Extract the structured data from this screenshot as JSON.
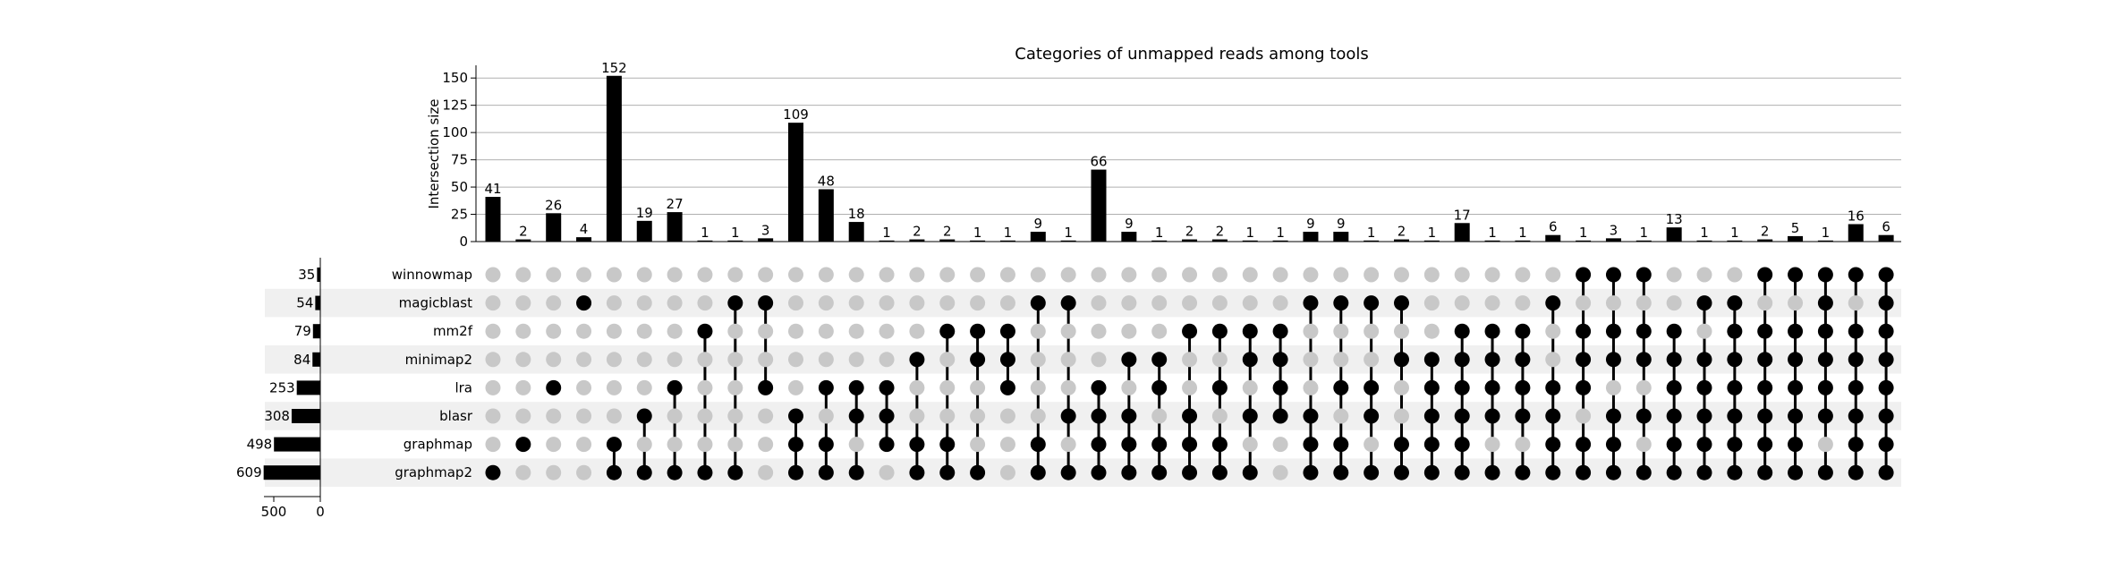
{
  "chart_data": {
    "type": "upset",
    "title": "Categories of unmapped reads among tools",
    "ylabel": "Intersection size",
    "ylim": [
      0,
      160
    ],
    "yticks": [
      0,
      25,
      50,
      75,
      100,
      125,
      150
    ],
    "grid": true,
    "sets": [
      "winnowmap",
      "magicblast",
      "mm2f",
      "minimap2",
      "lra",
      "blasr",
      "graphmap",
      "graphmap2"
    ],
    "set_sizes": [
      35,
      54,
      79,
      84,
      253,
      308,
      498,
      609
    ],
    "set_size_ticks": [
      500,
      0
    ],
    "intersections": [
      {
        "members": [
          "graphmap2"
        ],
        "size": 41
      },
      {
        "members": [
          "graphmap"
        ],
        "size": 2
      },
      {
        "members": [
          "lra"
        ],
        "size": 26
      },
      {
        "members": [
          "magicblast"
        ],
        "size": 4
      },
      {
        "members": [
          "graphmap",
          "graphmap2"
        ],
        "size": 152
      },
      {
        "members": [
          "blasr",
          "graphmap2"
        ],
        "size": 19
      },
      {
        "members": [
          "lra",
          "graphmap2"
        ],
        "size": 27
      },
      {
        "members": [
          "mm2f",
          "graphmap2"
        ],
        "size": 1
      },
      {
        "members": [
          "magicblast",
          "graphmap2"
        ],
        "size": 1
      },
      {
        "members": [
          "magicblast",
          "lra"
        ],
        "size": 3
      },
      {
        "members": [
          "blasr",
          "graphmap",
          "graphmap2"
        ],
        "size": 109
      },
      {
        "members": [
          "lra",
          "graphmap",
          "graphmap2"
        ],
        "size": 48
      },
      {
        "members": [
          "lra",
          "blasr",
          "graphmap2"
        ],
        "size": 18
      },
      {
        "members": [
          "lra",
          "blasr",
          "graphmap"
        ],
        "size": 1
      },
      {
        "members": [
          "minimap2",
          "graphmap",
          "graphmap2"
        ],
        "size": 2
      },
      {
        "members": [
          "mm2f",
          "graphmap",
          "graphmap2"
        ],
        "size": 2
      },
      {
        "members": [
          "mm2f",
          "minimap2",
          "graphmap2"
        ],
        "size": 1
      },
      {
        "members": [
          "mm2f",
          "minimap2",
          "lra"
        ],
        "size": 1
      },
      {
        "members": [
          "magicblast",
          "graphmap",
          "graphmap2"
        ],
        "size": 9
      },
      {
        "members": [
          "magicblast",
          "blasr",
          "graphmap2"
        ],
        "size": 1
      },
      {
        "members": [
          "lra",
          "blasr",
          "graphmap",
          "graphmap2"
        ],
        "size": 66
      },
      {
        "members": [
          "minimap2",
          "blasr",
          "graphmap",
          "graphmap2"
        ],
        "size": 9
      },
      {
        "members": [
          "minimap2",
          "lra",
          "graphmap",
          "graphmap2"
        ],
        "size": 1
      },
      {
        "members": [
          "mm2f",
          "blasr",
          "graphmap",
          "graphmap2"
        ],
        "size": 2
      },
      {
        "members": [
          "mm2f",
          "lra",
          "graphmap",
          "graphmap2"
        ],
        "size": 2
      },
      {
        "members": [
          "mm2f",
          "minimap2",
          "blasr",
          "graphmap2"
        ],
        "size": 1
      },
      {
        "members": [
          "mm2f",
          "minimap2",
          "lra",
          "blasr"
        ],
        "size": 1
      },
      {
        "members": [
          "magicblast",
          "blasr",
          "graphmap",
          "graphmap2"
        ],
        "size": 9
      },
      {
        "members": [
          "magicblast",
          "lra",
          "graphmap",
          "graphmap2"
        ],
        "size": 9
      },
      {
        "members": [
          "magicblast",
          "lra",
          "blasr",
          "graphmap2"
        ],
        "size": 1
      },
      {
        "members": [
          "magicblast",
          "minimap2",
          "graphmap",
          "graphmap2"
        ],
        "size": 2
      },
      {
        "members": [
          "minimap2",
          "lra",
          "blasr",
          "graphmap",
          "graphmap2"
        ],
        "size": 1
      },
      {
        "members": [
          "mm2f",
          "minimap2",
          "lra",
          "blasr",
          "graphmap",
          "graphmap2"
        ],
        "size": 17
      },
      {
        "members": [
          "mm2f",
          "minimap2",
          "lra",
          "blasr",
          "graphmap2"
        ],
        "size": 1
      },
      {
        "members": [
          "mm2f",
          "minimap2",
          "lra",
          "blasr",
          "graphmap2"
        ],
        "size": 1
      },
      {
        "members": [
          "magicblast",
          "lra",
          "blasr",
          "graphmap",
          "graphmap2"
        ],
        "size": 6
      },
      {
        "members": [
          "winnowmap",
          "mm2f",
          "minimap2",
          "lra",
          "graphmap",
          "graphmap2"
        ],
        "size": 1
      },
      {
        "members": [
          "winnowmap",
          "mm2f",
          "minimap2",
          "blasr",
          "graphmap",
          "graphmap2"
        ],
        "size": 3
      },
      {
        "members": [
          "winnowmap",
          "mm2f",
          "minimap2",
          "blasr",
          "graphmap2"
        ],
        "size": 1
      },
      {
        "members": [
          "mm2f",
          "minimap2",
          "lra",
          "blasr",
          "graphmap",
          "graphmap2"
        ],
        "size": 13
      },
      {
        "members": [
          "magicblast",
          "minimap2",
          "lra",
          "blasr",
          "graphmap",
          "graphmap2"
        ],
        "size": 1
      },
      {
        "members": [
          "magicblast",
          "mm2f",
          "minimap2",
          "lra",
          "blasr",
          "graphmap",
          "graphmap2"
        ],
        "size": 1
      },
      {
        "members": [
          "winnowmap",
          "mm2f",
          "minimap2",
          "lra",
          "blasr",
          "graphmap",
          "graphmap2"
        ],
        "size": 2
      },
      {
        "members": [
          "winnowmap",
          "mm2f",
          "minimap2",
          "lra",
          "blasr",
          "graphmap",
          "graphmap2"
        ],
        "size": 5
      },
      {
        "members": [
          "winnowmap",
          "magicblast",
          "mm2f",
          "minimap2",
          "lra",
          "blasr",
          "graphmap2"
        ],
        "size": 1
      },
      {
        "members": [
          "winnowmap",
          "mm2f",
          "minimap2",
          "lra",
          "blasr",
          "graphmap",
          "graphmap2"
        ],
        "size": 16
      },
      {
        "members": [
          "winnowmap",
          "magicblast",
          "mm2f",
          "minimap2",
          "lra",
          "blasr",
          "graphmap",
          "graphmap2"
        ],
        "size": 6
      }
    ]
  }
}
